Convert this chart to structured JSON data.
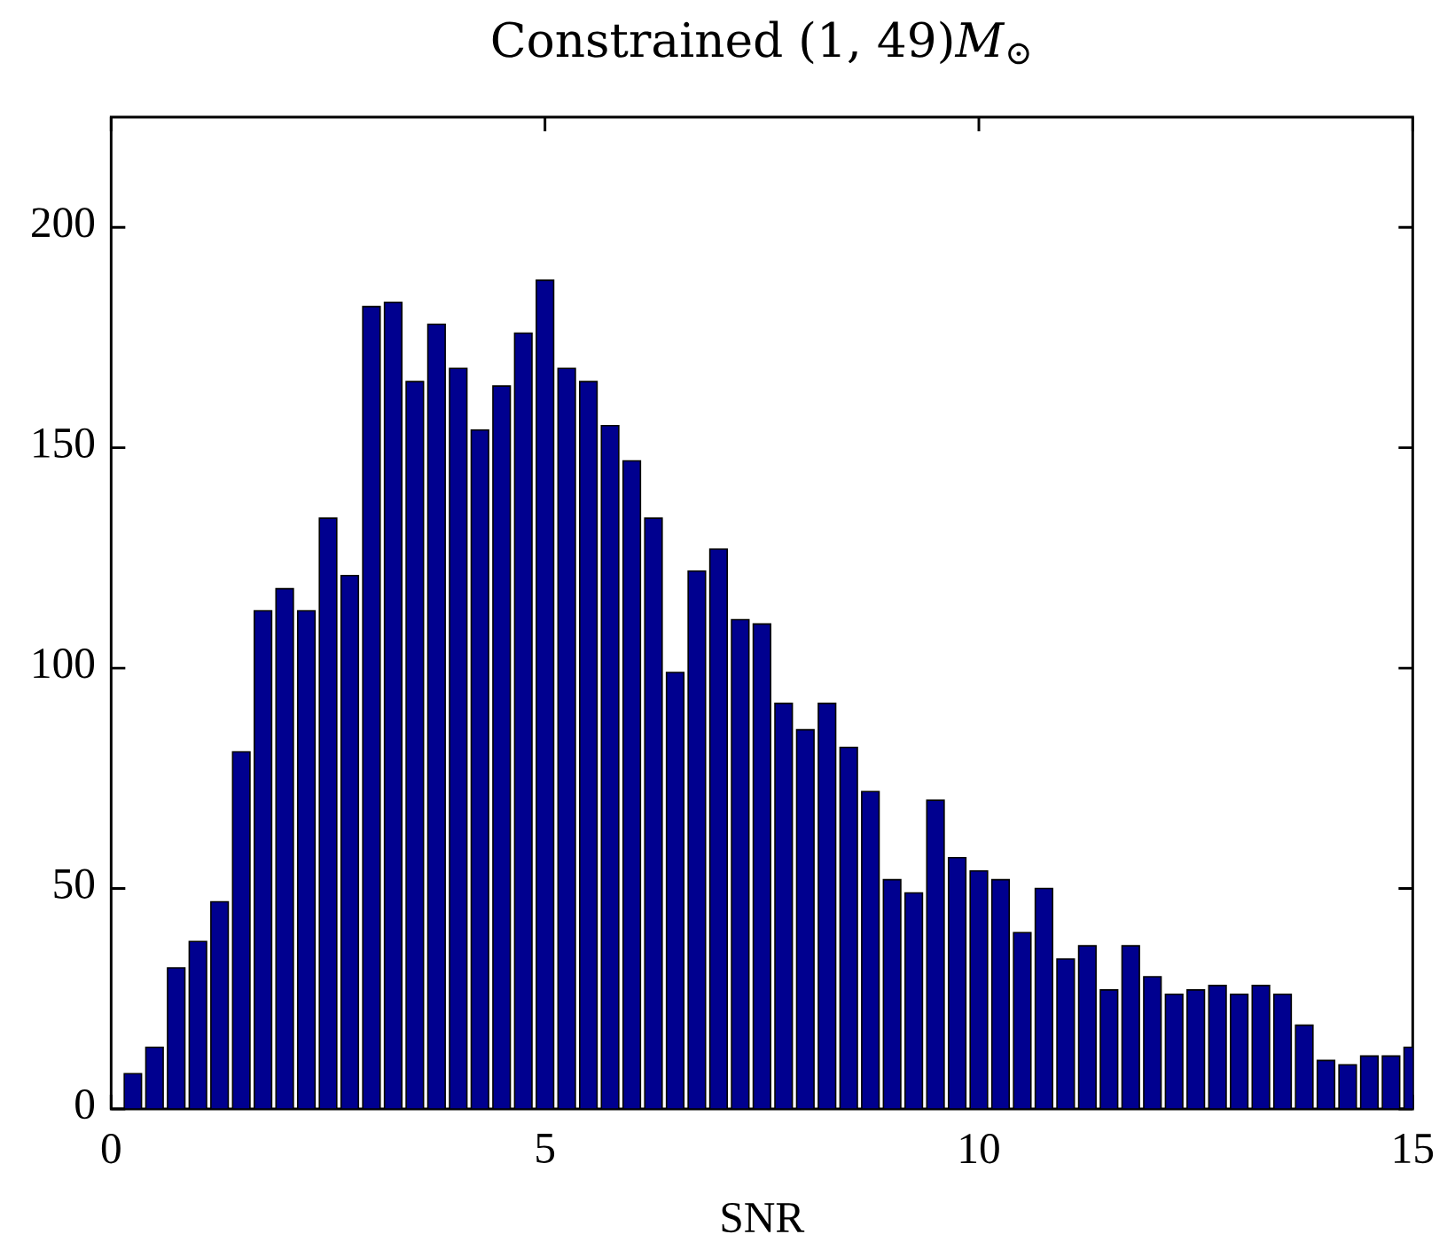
{
  "chart_data": {
    "type": "bar",
    "title": "Constrained (1, 49)*M*$_{⊙}$",
    "xlabel": "SNR",
    "x": [
      0.25,
      0.5,
      0.75,
      1,
      1.25,
      1.5,
      1.75,
      2,
      2.25,
      2.5,
      2.75,
      3,
      3.25,
      3.5,
      3.75,
      4,
      4.25,
      4.5,
      4.75,
      5,
      5.25,
      5.5,
      5.75,
      6,
      6.25,
      6.5,
      6.75,
      7,
      7.25,
      7.5,
      7.75,
      8,
      8.25,
      8.5,
      8.75,
      9,
      9.25,
      9.5,
      9.75,
      10,
      10.25,
      10.5,
      10.75,
      11,
      11.25,
      11.5,
      11.75,
      12,
      12.25,
      12.5,
      12.75,
      13,
      13.25,
      13.5,
      13.75,
      14,
      14.25,
      14.5,
      14.75,
      15
    ],
    "values": [
      8,
      14,
      32,
      38,
      47,
      81,
      113,
      118,
      113,
      134,
      121,
      182,
      183,
      165,
      178,
      168,
      154,
      164,
      176,
      188,
      168,
      165,
      155,
      147,
      134,
      99,
      122,
      127,
      111,
      110,
      92,
      86,
      92,
      82,
      72,
      52,
      49,
      70,
      57,
      54,
      52,
      40,
      50,
      34,
      37,
      27,
      37,
      30,
      26,
      27,
      28,
      26,
      28,
      26,
      19,
      11,
      10,
      12,
      12,
      14
    ],
    "color": "#00008f",
    "xlim": [
      0,
      15
    ],
    "ylim": [
      0,
      225
    ],
    "xticks": [
      0,
      5,
      10,
      15
    ],
    "yticks": [
      0,
      50,
      100,
      150,
      200
    ]
  }
}
